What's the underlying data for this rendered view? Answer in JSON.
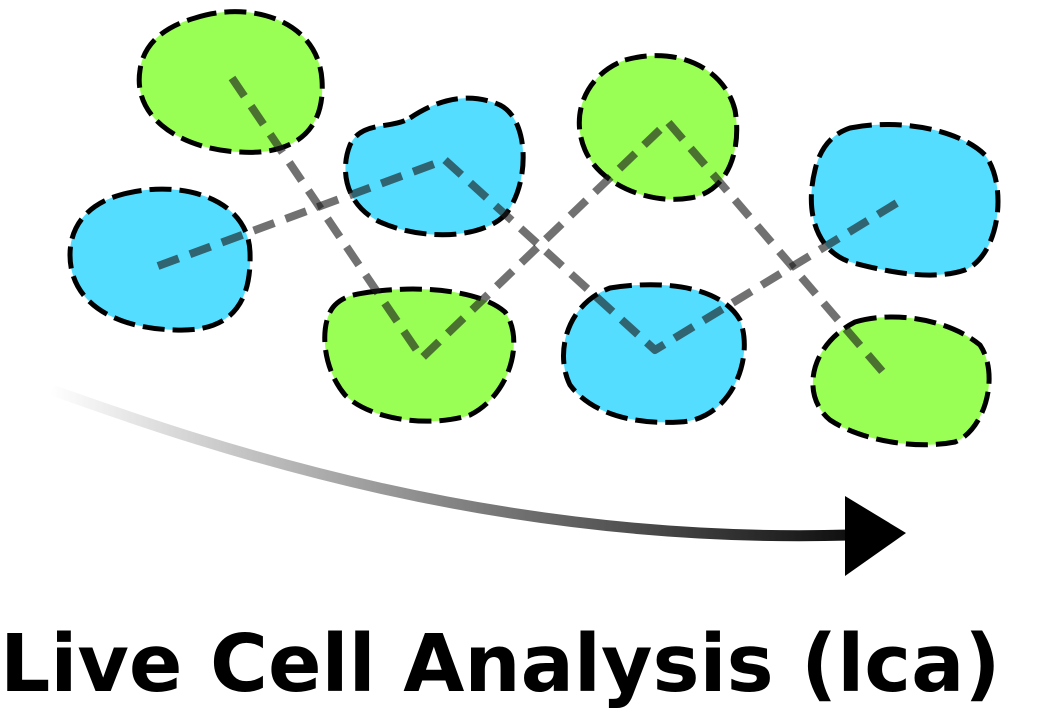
{
  "title": "Live Cell Analysis (lca)",
  "colors": {
    "cell_green": "#99ff55",
    "cell_blue": "#55ddff",
    "outline": "#000000",
    "track": "#333333",
    "arrow": "#000000"
  },
  "icons": {
    "cells": "cell-blob-icon",
    "tracks": "dashed-track-line",
    "time_arrow": "curved-arrow-icon"
  }
}
